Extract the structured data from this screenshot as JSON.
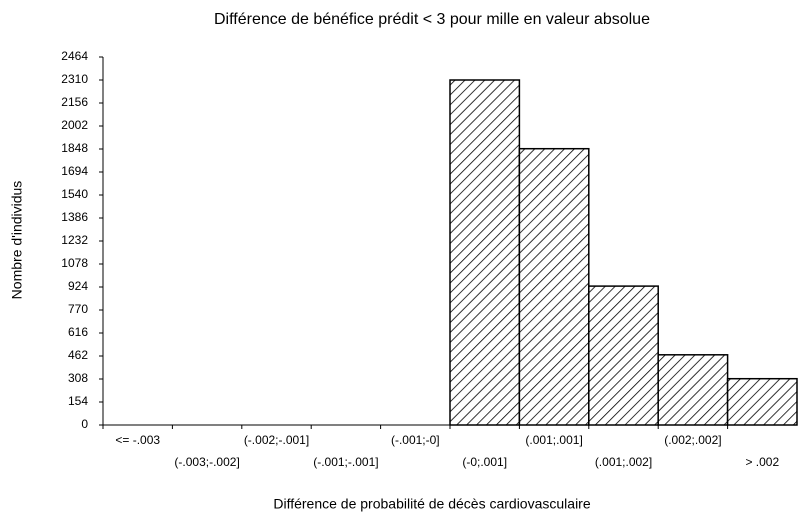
{
  "chart_data": {
    "type": "bar",
    "title": "Différence de bénéfice prédit < 3 pour mille en valeur absolue",
    "x_label": "Différence de probabilité de décès cardiovasculaire",
    "y_label": "Nombre d'individus",
    "categories": [
      "<= -.003",
      "(-.003;-.002]",
      "(-.002;-.001]",
      "(-.001;-.001]",
      "(-.001;-0]",
      "(-0;.001]",
      "(.001;.001]",
      "(.001;.002]",
      "(.002;.002]",
      "> .002"
    ],
    "values": [
      0,
      0,
      0,
      0,
      0,
      2310,
      1850,
      930,
      470,
      310
    ],
    "color": "#000000",
    "ylim": [
      0,
      2464
    ],
    "yticks": [
      0,
      154,
      308,
      462,
      616,
      770,
      924,
      1078,
      1232,
      1386,
      1540,
      1694,
      1848,
      2002,
      2156,
      2310,
      2464
    ]
  }
}
